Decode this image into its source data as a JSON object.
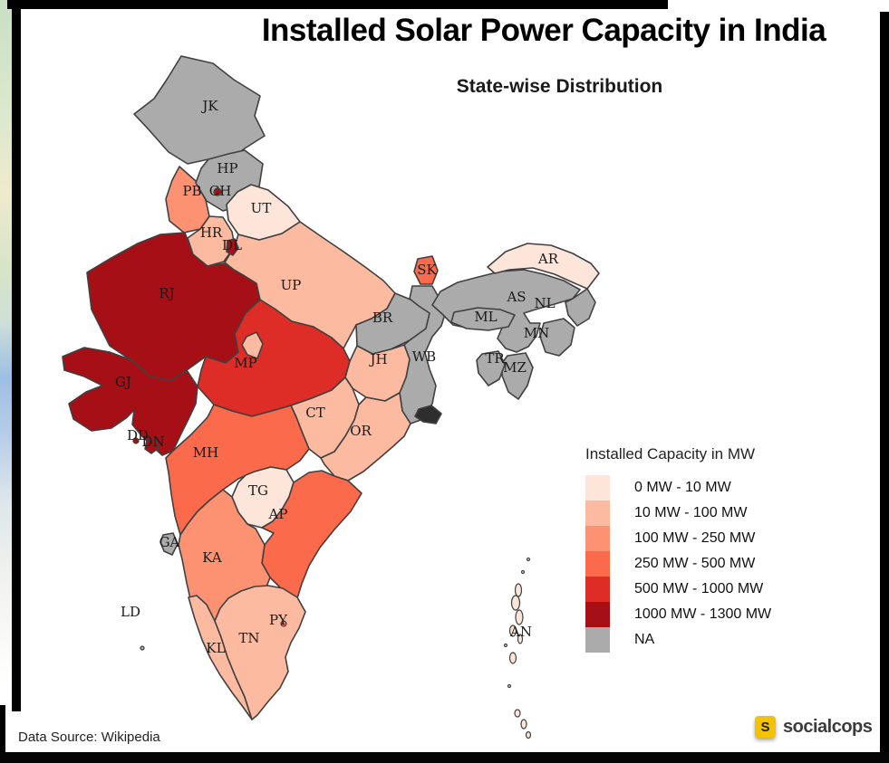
{
  "header": {
    "title": "Installed Solar Power Capacity in India",
    "subtitle": "State-wise Distribution"
  },
  "legend": {
    "title": "Installed Capacity in MW"
  },
  "footer": {
    "source": "Data Source: Wikipedia",
    "logo_mark": "S",
    "logo_text": "socialcops"
  },
  "chart_data": {
    "type": "heatmap",
    "subtype": "choropleth-map",
    "title": "Installed Solar Power Capacity in India",
    "subtitle": "State-wise Distribution",
    "legend_title": "Installed Capacity in MW",
    "legend_position": "right",
    "source": "Data Source: Wikipedia",
    "na_color": "#ababab",
    "outline_color": "#404040",
    "bins": [
      {
        "key": "0-10",
        "label": "0 MW - 10 MW",
        "color": "#fee5d9"
      },
      {
        "key": "10-100",
        "label": "10 MW - 100 MW",
        "color": "#fcbba1"
      },
      {
        "key": "100-250",
        "label": "100 MW - 250 MW",
        "color": "#fc9272"
      },
      {
        "key": "250-500",
        "label": "250 MW - 500 MW",
        "color": "#fb6a4a"
      },
      {
        "key": "500-1000",
        "label": "500 MW - 1000 MW",
        "color": "#de2d26"
      },
      {
        "key": "1000-1300",
        "label": "1000 MW - 1300 MW",
        "color": "#a50f15"
      },
      {
        "key": "NA",
        "label": "NA",
        "color": "#ababab"
      }
    ],
    "states": [
      {
        "code": "JK",
        "bin": "NA"
      },
      {
        "code": "HP",
        "bin": "NA"
      },
      {
        "code": "PB",
        "bin": "100-250"
      },
      {
        "code": "CH",
        "bin": "1000-1300"
      },
      {
        "code": "UT",
        "bin": "0-10"
      },
      {
        "code": "HR",
        "bin": "10-100"
      },
      {
        "code": "DL",
        "bin": "1000-1300"
      },
      {
        "code": "RJ",
        "bin": "1000-1300"
      },
      {
        "code": "UP",
        "bin": "10-100"
      },
      {
        "code": "BR",
        "bin": "NA"
      },
      {
        "code": "SK",
        "bin": "250-500"
      },
      {
        "code": "AR",
        "bin": "0-10"
      },
      {
        "code": "AS",
        "bin": "NA"
      },
      {
        "code": "NL",
        "bin": "NA"
      },
      {
        "code": "ML",
        "bin": "NA"
      },
      {
        "code": "MN",
        "bin": "NA"
      },
      {
        "code": "TR",
        "bin": "NA"
      },
      {
        "code": "MZ",
        "bin": "NA"
      },
      {
        "code": "WB",
        "bin": "NA"
      },
      {
        "code": "JH",
        "bin": "10-100"
      },
      {
        "code": "GJ",
        "bin": "1000-1300"
      },
      {
        "code": "MP",
        "bin": "500-1000"
      },
      {
        "code": "CT",
        "bin": "10-100"
      },
      {
        "code": "OR",
        "bin": "10-100"
      },
      {
        "code": "DD",
        "bin": "1000-1300"
      },
      {
        "code": "DN",
        "bin": "1000-1300"
      },
      {
        "code": "MH",
        "bin": "250-500"
      },
      {
        "code": "TG",
        "bin": "0-10"
      },
      {
        "code": "AP",
        "bin": "250-500"
      },
      {
        "code": "KA",
        "bin": "100-250"
      },
      {
        "code": "GA",
        "bin": "NA"
      },
      {
        "code": "LD",
        "bin": "NA"
      },
      {
        "code": "TN",
        "bin": "10-100"
      },
      {
        "code": "KL",
        "bin": "10-100"
      },
      {
        "code": "PY",
        "bin": "250-500"
      },
      {
        "code": "AN",
        "bin": "0-10"
      }
    ]
  }
}
